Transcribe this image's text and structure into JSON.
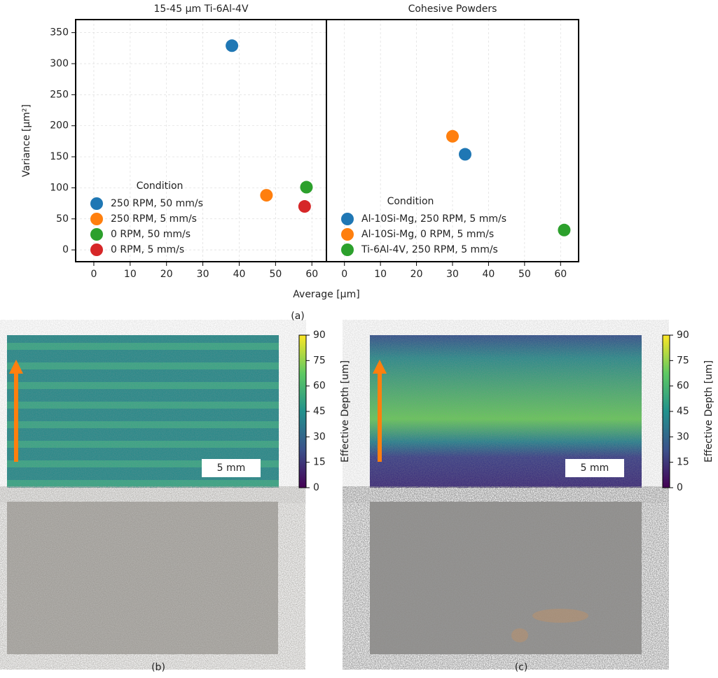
{
  "chart_data": [
    {
      "type": "scatter",
      "title": "15-45 µm Ti-6Al-4V",
      "xlabel": "Average [µm]",
      "ylabel": "Variance [µm²]",
      "xlim": [
        -5,
        64
      ],
      "ylim": [
        -19,
        371
      ],
      "xticks": [
        0,
        10,
        20,
        30,
        40,
        50,
        60
      ],
      "yticks": [
        0,
        50,
        100,
        150,
        200,
        250,
        300,
        350
      ],
      "grid": true,
      "legend_title": "Condition",
      "legend": "lower left",
      "series": [
        {
          "name": "250 RPM, 50 mm/s",
          "color": "#1f77b4",
          "x": [
            38
          ],
          "values": [
            329
          ]
        },
        {
          "name": "250 RPM, 5 mm/s",
          "color": "#ff7f0e",
          "x": [
            47.5
          ],
          "values": [
            88
          ]
        },
        {
          "name": "0 RPM, 50 mm/s",
          "color": "#2ca02c",
          "x": [
            58.5
          ],
          "values": [
            101
          ]
        },
        {
          "name": "0 RPM, 5 mm/s",
          "color": "#d62728",
          "x": [
            58
          ],
          "values": [
            70
          ]
        }
      ]
    },
    {
      "type": "scatter",
      "title": "Cohesive Powders",
      "xlim": [
        -5,
        65
      ],
      "ylim": [
        -19,
        371
      ],
      "xticks": [
        0,
        10,
        20,
        30,
        40,
        50,
        60
      ],
      "grid": true,
      "legend_title": "Condition",
      "legend": "lower left",
      "series": [
        {
          "name": "Al-10Si-Mg, 250 RPM, 5 mm/s",
          "color": "#1f77b4",
          "x": [
            33.5
          ],
          "values": [
            154
          ]
        },
        {
          "name": "Al-10Si-Mg, 0 RPM, 5 mm/s",
          "color": "#ff7f0e",
          "x": [
            30
          ],
          "values": [
            183
          ]
        },
        {
          "name": "Ti-6Al-4V, 250 RPM, 5 mm/s",
          "color": "#2ca02c",
          "x": [
            61
          ],
          "values": [
            32
          ]
        }
      ]
    },
    {
      "type": "colorbar",
      "ylabel": "Effective Depth [um]",
      "ylim": [
        0,
        90
      ],
      "yticks": [
        0,
        15,
        30,
        45,
        60,
        75,
        90
      ]
    },
    {
      "type": "colorbar",
      "ylabel": "Effective Depth [um]",
      "ylim": [
        0,
        90
      ],
      "yticks": [
        0,
        15,
        30,
        45,
        60,
        75,
        90
      ]
    }
  ],
  "captions": [
    "(a)",
    "(b)",
    "(c)"
  ],
  "scale_bars": [
    "5 mm",
    "5 mm"
  ]
}
